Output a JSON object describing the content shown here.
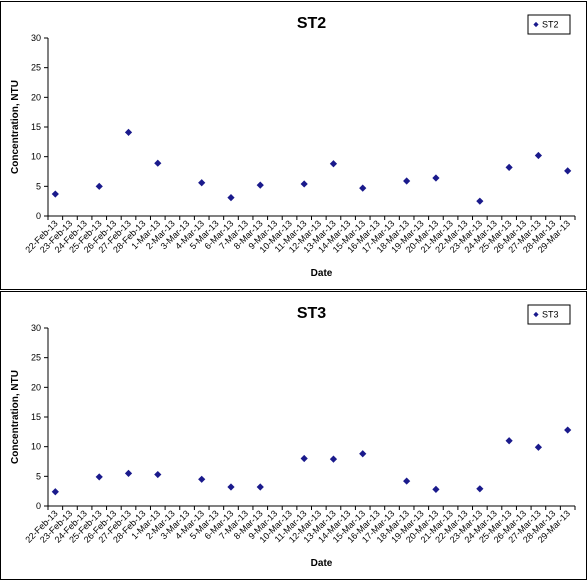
{
  "chart_data": [
    {
      "type": "scatter",
      "title": "ST2",
      "xlabel": "Date",
      "ylabel": "Concentration, NTU",
      "ylim": [
        0,
        30
      ],
      "yticks": [
        "0",
        "5",
        "10",
        "15",
        "20",
        "25",
        "30"
      ],
      "legend_position": "top-right",
      "marker_color": "#1a1a8c",
      "categories": [
        "22-Feb-13",
        "23-Feb-13",
        "24-Feb-13",
        "25-Feb-13",
        "26-Feb-13",
        "27-Feb-13",
        "28-Feb-13",
        "1-Mar-13",
        "2-Mar-13",
        "3-Mar-13",
        "4-Mar-13",
        "5-Mar-13",
        "6-Mar-13",
        "7-Mar-13",
        "8-Mar-13",
        "9-Mar-13",
        "10-Mar-13",
        "11-Mar-13",
        "12-Mar-13",
        "13-Mar-13",
        "14-Mar-13",
        "15-Mar-13",
        "16-Mar-13",
        "17-Mar-13",
        "18-Mar-13",
        "19-Mar-13",
        "20-Mar-13",
        "21-Mar-13",
        "22-Mar-13",
        "23-Mar-13",
        "24-Mar-13",
        "25-Mar-13",
        "26-Mar-13",
        "27-Mar-13",
        "28-Mar-13",
        "29-Mar-13"
      ],
      "series": [
        {
          "name": "ST2",
          "points": [
            {
              "x": "22-Feb-13",
              "y": 3.7
            },
            {
              "x": "25-Feb-13",
              "y": 5.0
            },
            {
              "x": "27-Feb-13",
              "y": 14.1
            },
            {
              "x": "1-Mar-13",
              "y": 8.9
            },
            {
              "x": "4-Mar-13",
              "y": 5.6
            },
            {
              "x": "6-Mar-13",
              "y": 3.1
            },
            {
              "x": "8-Mar-13",
              "y": 5.2
            },
            {
              "x": "11-Mar-13",
              "y": 5.4
            },
            {
              "x": "13-Mar-13",
              "y": 8.8
            },
            {
              "x": "15-Mar-13",
              "y": 4.7
            },
            {
              "x": "18-Mar-13",
              "y": 5.9
            },
            {
              "x": "20-Mar-13",
              "y": 6.4
            },
            {
              "x": "23-Mar-13",
              "y": 2.5
            },
            {
              "x": "25-Mar-13",
              "y": 8.2
            },
            {
              "x": "27-Mar-13",
              "y": 10.2
            },
            {
              "x": "29-Mar-13",
              "y": 7.6
            }
          ]
        }
      ]
    },
    {
      "type": "scatter",
      "title": "ST3",
      "xlabel": "Date",
      "ylabel": "Concentration, NTU",
      "ylim": [
        0,
        30
      ],
      "yticks": [
        "0",
        "5",
        "10",
        "15",
        "20",
        "25",
        "30"
      ],
      "legend_position": "top-right",
      "marker_color": "#1a1a8c",
      "categories": [
        "22-Feb-13",
        "23-Feb-13",
        "24-Feb-13",
        "25-Feb-13",
        "26-Feb-13",
        "27-Feb-13",
        "28-Feb-13",
        "1-Mar-13",
        "2-Mar-13",
        "3-Mar-13",
        "4-Mar-13",
        "5-Mar-13",
        "6-Mar-13",
        "7-Mar-13",
        "8-Mar-13",
        "9-Mar-13",
        "10-Mar-13",
        "11-Mar-13",
        "12-Mar-13",
        "13-Mar-13",
        "14-Mar-13",
        "15-Mar-13",
        "16-Mar-13",
        "17-Mar-13",
        "18-Mar-13",
        "19-Mar-13",
        "20-Mar-13",
        "21-Mar-13",
        "22-Mar-13",
        "23-Mar-13",
        "24-Mar-13",
        "25-Mar-13",
        "26-Mar-13",
        "27-Mar-13",
        "28-Mar-13",
        "29-Mar-13"
      ],
      "series": [
        {
          "name": "ST3",
          "points": [
            {
              "x": "22-Feb-13",
              "y": 2.4
            },
            {
              "x": "25-Feb-13",
              "y": 4.9
            },
            {
              "x": "27-Feb-13",
              "y": 5.5
            },
            {
              "x": "1-Mar-13",
              "y": 5.3
            },
            {
              "x": "4-Mar-13",
              "y": 4.5
            },
            {
              "x": "6-Mar-13",
              "y": 3.2
            },
            {
              "x": "8-Mar-13",
              "y": 3.2
            },
            {
              "x": "11-Mar-13",
              "y": 8.0
            },
            {
              "x": "13-Mar-13",
              "y": 7.9
            },
            {
              "x": "15-Mar-13",
              "y": 8.8
            },
            {
              "x": "18-Mar-13",
              "y": 4.2
            },
            {
              "x": "20-Mar-13",
              "y": 2.8
            },
            {
              "x": "23-Mar-13",
              "y": 2.9
            },
            {
              "x": "25-Mar-13",
              "y": 11.0
            },
            {
              "x": "27-Mar-13",
              "y": 9.9
            },
            {
              "x": "29-Mar-13",
              "y": 12.8
            }
          ]
        }
      ]
    }
  ]
}
